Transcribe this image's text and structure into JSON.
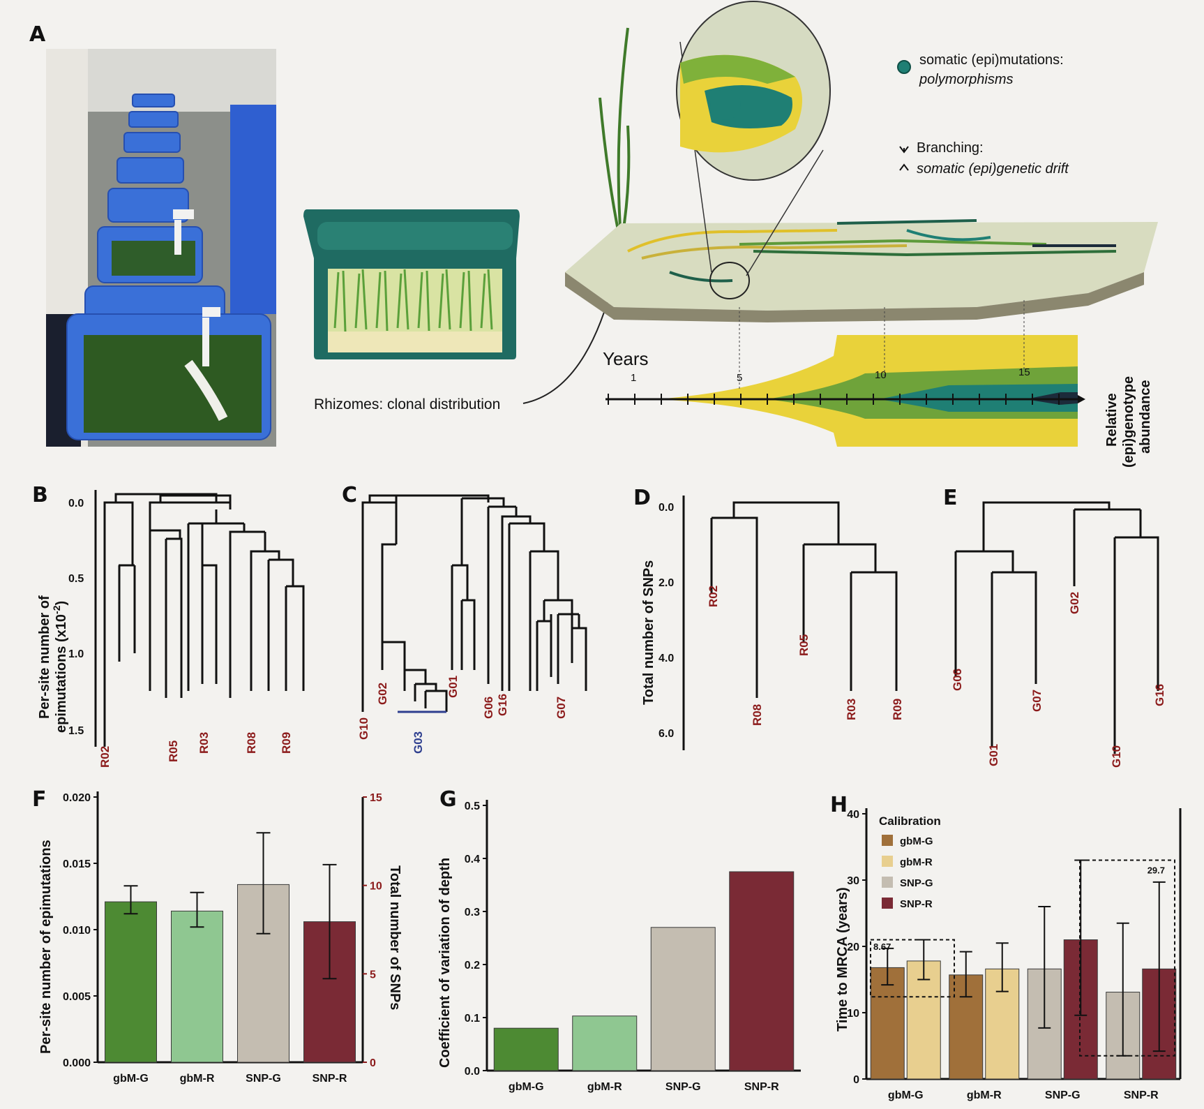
{
  "panel_letters": {
    "A": "A",
    "B": "B",
    "C": "C",
    "D": "D",
    "E": "E",
    "F": "F",
    "G": "G",
    "H": "H"
  },
  "panelA": {
    "legend_mutation_line1": "somatic (epi)mutations:",
    "legend_mutation_line2": "polymorphisms",
    "legend_branch_line1": "Branching:",
    "legend_branch_line2": "somatic (epi)genetic drift",
    "rhizome_label": "Rhizomes: clonal distribution",
    "timeline_title": "Years",
    "timeline_ticks": [
      "1",
      "5",
      "10",
      "15"
    ],
    "abundance_line1": "Relative",
    "abundance_line2": "(epi)genotype",
    "abundance_line3": "abundance",
    "colors": {
      "yellow": "#e9d23a",
      "green": "#6fa33a",
      "teal": "#1f7f74",
      "dark": "#1c2b3a",
      "tank": "#3a70d8"
    }
  },
  "panelB": {
    "ylabel_line1": "Per-site number of",
    "ylabel_line2": "epimutations (x10",
    "ylabel_sup": "-2",
    "ylabel_close": ")",
    "ticks": [
      "0.0",
      "0.5",
      "1.0",
      "1.5"
    ],
    "leaves": [
      "R02",
      "R05",
      "R03",
      "R08",
      "R09"
    ]
  },
  "panelC": {
    "leaves": [
      "G10",
      "G02",
      "G01",
      "G06",
      "G16",
      "G07"
    ],
    "group_label": "G03",
    "group_color": "#2e3f8f"
  },
  "panelD": {
    "ylabel": "Total number of SNPs",
    "ticks": [
      "0.0",
      "2.0",
      "4.0",
      "6.0"
    ],
    "leaves": [
      "R02",
      "R08",
      "R05",
      "R03",
      "R09"
    ]
  },
  "panelE": {
    "leaves": [
      "G06",
      "G01",
      "G07",
      "G02",
      "G10",
      "G16"
    ]
  },
  "chart_data": [
    {
      "panel": "F",
      "type": "bar",
      "categories": [
        "gbM-G",
        "gbM-R",
        "SNP-G",
        "SNP-R"
      ],
      "ylabel": "Per-site number of epimutations",
      "y2label": "Total number of SNPs",
      "ylim": [
        0,
        0.02
      ],
      "y2lim": [
        0,
        15
      ],
      "yticks": [
        "0.000",
        "0.005",
        "0.010",
        "0.015",
        "0.020"
      ],
      "y2ticks": [
        "0",
        "5",
        "10",
        "15"
      ],
      "values": [
        0.0121,
        0.0114,
        0.0134,
        0.0106
      ],
      "err_low": [
        0.0112,
        0.0102,
        0.0097,
        0.0063
      ],
      "err_high": [
        0.0133,
        0.0128,
        0.0173,
        0.0149
      ],
      "colors": [
        "#4d8a33",
        "#8fc791",
        "#c4bdb1",
        "#7a2a35"
      ]
    },
    {
      "panel": "G",
      "type": "bar",
      "categories": [
        "gbM-G",
        "gbM-R",
        "SNP-G",
        "SNP-R"
      ],
      "ylabel": "Coefficient of variation of depth",
      "ylim": [
        0,
        0.5
      ],
      "yticks": [
        "0.0",
        "0.1",
        "0.2",
        "0.3",
        "0.4",
        "0.5"
      ],
      "values": [
        0.08,
        0.103,
        0.27,
        0.375
      ],
      "colors": [
        "#4d8a33",
        "#8fc791",
        "#c4bdb1",
        "#7a2a35"
      ]
    },
    {
      "panel": "H",
      "type": "bar",
      "categories": [
        "gbM-G",
        "gbM-R",
        "SNP-G",
        "SNP-R"
      ],
      "ylabel": "Time to MRCA (years)",
      "ylim": [
        0,
        40
      ],
      "yticks": [
        "0",
        "10",
        "20",
        "30",
        "40"
      ],
      "legend_title": "Calibration",
      "series": [
        {
          "name": "gbM-G",
          "color": "#a0703a"
        },
        {
          "name": "gbM-R",
          "color": "#e8cf8f"
        },
        {
          "name": "SNP-G",
          "color": "#c4bdb1"
        },
        {
          "name": "SNP-R",
          "color": "#7a2a35"
        }
      ],
      "bars": [
        {
          "group": 0,
          "series": 0,
          "value": 16.8,
          "err": [
            14.2,
            19.7
          ]
        },
        {
          "group": 0,
          "series": 1,
          "value": 17.8,
          "err": [
            15.0,
            21.0
          ]
        },
        {
          "group": 1,
          "series": 0,
          "value": 15.7,
          "err": [
            12.4,
            19.2
          ]
        },
        {
          "group": 1,
          "series": 1,
          "value": 16.6,
          "err": [
            13.2,
            20.5
          ]
        },
        {
          "group": 2,
          "series": 2,
          "value": 16.6,
          "err": [
            7.7,
            26.0
          ]
        },
        {
          "group": 2,
          "series": 3,
          "value": 21.0,
          "err": [
            9.6,
            33.0
          ]
        },
        {
          "group": 3,
          "series": 2,
          "value": 13.1,
          "err": [
            3.5,
            23.5
          ]
        },
        {
          "group": 3,
          "series": 3,
          "value": 16.6,
          "err": [
            4.2,
            29.7
          ]
        }
      ],
      "annotations": [
        "8.67",
        "29.7"
      ]
    }
  ]
}
